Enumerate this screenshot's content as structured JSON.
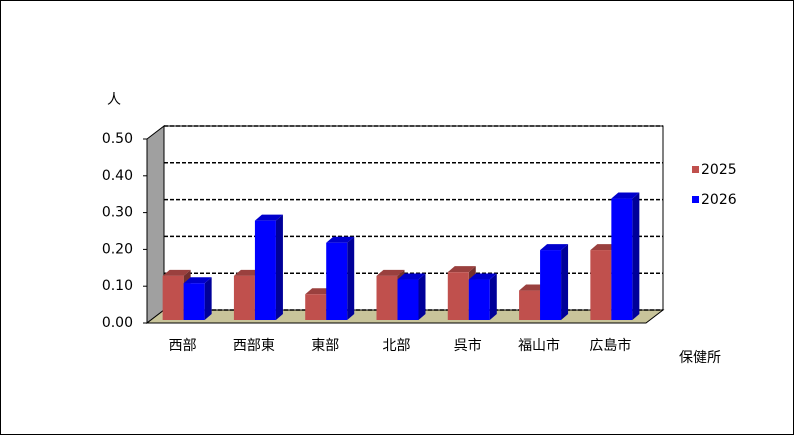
{
  "chart_data": {
    "type": "bar3d",
    "y_label": "人",
    "x_label": "保健所",
    "categories": [
      "西部",
      "西部東",
      "東部",
      "北部",
      "呉市",
      "福山市",
      "広島市"
    ],
    "series": [
      {
        "name": "2025",
        "color": "#c0504d",
        "values": [
          0.12,
          0.12,
          0.07,
          0.12,
          0.13,
          0.08,
          0.19
        ]
      },
      {
        "name": "2026",
        "color": "#0000ff",
        "values": [
          0.1,
          0.27,
          0.21,
          0.11,
          0.11,
          0.19,
          0.33
        ]
      }
    ],
    "ylim": [
      0,
      0.5
    ],
    "yticks": [
      {
        "value": 0,
        "label": "0.00"
      },
      {
        "value": 0.1,
        "label": "0.10"
      },
      {
        "value": 0.2,
        "label": "0.20"
      },
      {
        "value": 0.3,
        "label": "0.30"
      },
      {
        "value": 0.4,
        "label": "0.40"
      },
      {
        "value": 0.5,
        "label": "0.50"
      }
    ],
    "grid": true,
    "legend": "right"
  }
}
